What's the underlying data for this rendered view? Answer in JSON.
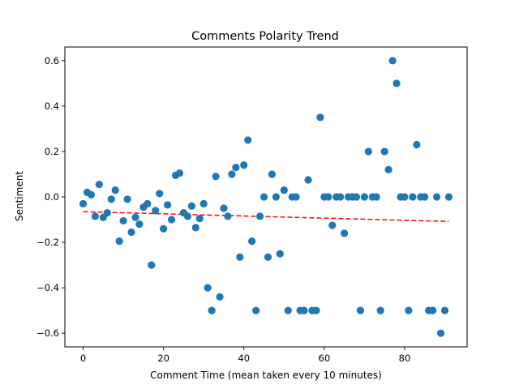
{
  "chart_data": {
    "type": "scatter",
    "title": "Comments Polarity Trend",
    "xlabel": "Comment Time (mean taken every 10 minutes)",
    "ylabel": "Sentiment",
    "xlim": [
      -4.55,
      95.55
    ],
    "ylim": [
      -0.66,
      0.66
    ],
    "xticks": [
      0,
      20,
      40,
      60,
      80
    ],
    "yticks": [
      -0.6,
      -0.4,
      -0.2,
      0.0,
      0.2,
      0.4,
      0.6
    ],
    "xtick_labels": [
      "0",
      "20",
      "40",
      "60",
      "80"
    ],
    "ytick_labels": [
      "−0.6",
      "−0.4",
      "−0.2",
      "0.0",
      "0.2",
      "0.4",
      "0.6"
    ],
    "grid": false,
    "point_color": "#1f77b4",
    "trend_color": "#ff0000",
    "trend_line": {
      "x": [
        0,
        91
      ],
      "y": [
        -0.065,
        -0.108
      ]
    },
    "series": [
      {
        "x": [
          0,
          1,
          2,
          3,
          4,
          5,
          6,
          7,
          8,
          9,
          10,
          11,
          12,
          13,
          14,
          15,
          16,
          17,
          18,
          19,
          20,
          21,
          22,
          23,
          24,
          25,
          26,
          27,
          28,
          29,
          30,
          31,
          32,
          33,
          34,
          35,
          36,
          37,
          38,
          39,
          40,
          41,
          42,
          43,
          44,
          45,
          46,
          47,
          48,
          49,
          50,
          51,
          52,
          53,
          54,
          55,
          56,
          57,
          58,
          59,
          60,
          61,
          62,
          63,
          64,
          65,
          66,
          67,
          68,
          69,
          70,
          71,
          72,
          73,
          74,
          75,
          76,
          77,
          78,
          79,
          80,
          81,
          82,
          83,
          84,
          85,
          86,
          87,
          88,
          89,
          90,
          91
        ],
        "y": [
          -0.03,
          0.02,
          0.01,
          -0.085,
          0.055,
          -0.09,
          -0.07,
          -0.01,
          0.03,
          -0.195,
          -0.105,
          -0.01,
          -0.155,
          -0.09,
          -0.12,
          -0.045,
          -0.03,
          -0.3,
          -0.06,
          0.015,
          -0.14,
          -0.035,
          -0.1,
          0.095,
          0.105,
          -0.07,
          -0.085,
          -0.04,
          -0.135,
          -0.095,
          -0.03,
          -0.4,
          -0.5,
          0.09,
          -0.44,
          -0.05,
          -0.085,
          0.1,
          0.13,
          -0.265,
          0.14,
          0.25,
          -0.195,
          -0.5,
          -0.085,
          0.0,
          -0.265,
          0.1,
          0.0,
          -0.25,
          0.03,
          -0.5,
          0.0,
          0.0,
          -0.5,
          -0.5,
          0.075,
          -0.5,
          -0.5,
          0.35,
          0.0,
          0.0,
          -0.125,
          0.0,
          0.0,
          -0.16,
          0.0,
          0.0,
          0.0,
          -0.5,
          0.0,
          0.2,
          0.0,
          0.0,
          -0.5,
          0.2,
          0.12,
          0.6,
          0.5,
          0.0,
          0.0,
          -0.5,
          0.0,
          0.23,
          0.0,
          0.0,
          -0.5,
          -0.5,
          0.0,
          -0.6,
          -0.5,
          0.0
        ]
      }
    ]
  }
}
